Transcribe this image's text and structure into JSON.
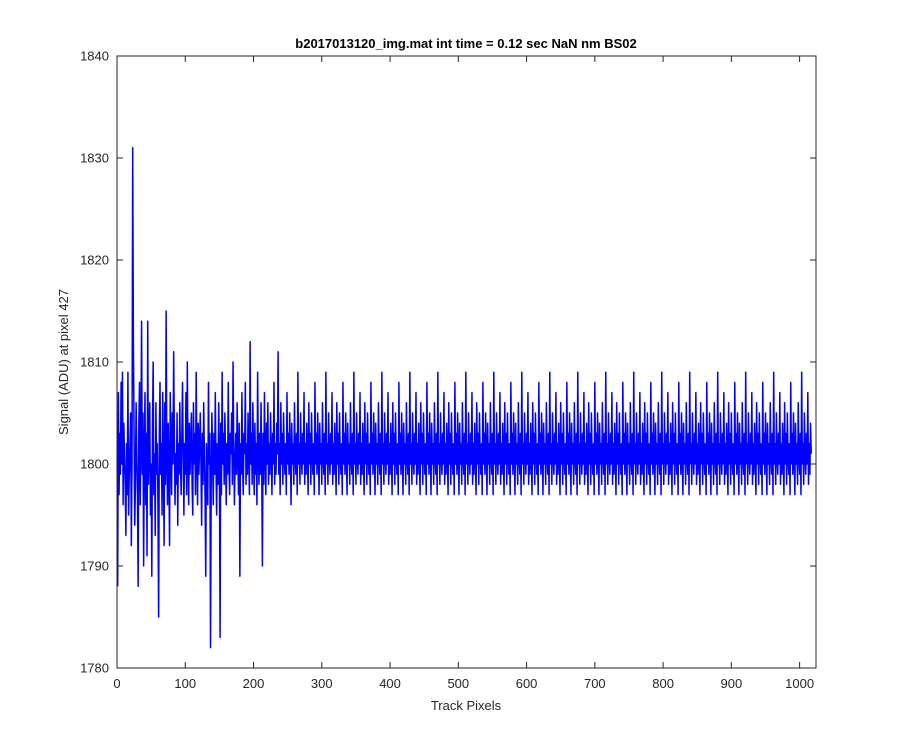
{
  "chart_data": {
    "type": "line",
    "title": "b2017013120_img.mat int time = 0.12 sec  NaN nm BS02",
    "xlabel": "Track Pixels",
    "ylabel": "Signal (ADU) at pixel 427",
    "xlim": [
      0,
      1024
    ],
    "ylim": [
      1780,
      1840
    ],
    "xticks": [
      "0",
      "100",
      "200",
      "300",
      "400",
      "500",
      "600",
      "700",
      "800",
      "900",
      "1000"
    ],
    "yticks": [
      "1780",
      "1790",
      "1800",
      "1810",
      "1820",
      "1830",
      "1840"
    ],
    "grid": false,
    "box": true,
    "series": [
      {
        "color": "#0000ff",
        "x_start": 1,
        "x_step": 1,
        "values": [
          1788,
          1807,
          1797,
          1803,
          1799,
          1808,
          1800,
          1809,
          1796,
          1804,
          1801,
          1798,
          1793,
          1802,
          1797,
          1809,
          1795,
          1799,
          1802,
          1805,
          1792,
          1800,
          1831,
          1812,
          1803,
          1794,
          1798,
          1806,
          1801,
          1797,
          1788,
          1804,
          1808,
          1796,
          1802,
          1814,
          1799,
          1805,
          1790,
          1801,
          1807,
          1796,
          1803,
          1791,
          1814,
          1798,
          1802,
          1806,
          1795,
          1800,
          1789,
          1804,
          1810,
          1797,
          1801,
          1793,
          1806,
          1799,
          1802,
          1796,
          1785,
          1803,
          1808,
          1799,
          1802,
          1795,
          1807,
          1800,
          1792,
          1806,
          1798,
          1815,
          1801,
          1796,
          1804,
          1799,
          1792,
          1807,
          1802,
          1797,
          1805,
          1800,
          1811,
          1803,
          1796,
          1801,
          1798,
          1805,
          1794,
          1802,
          1799,
          1806,
          1800,
          1797,
          1803,
          1808,
          1801,
          1795,
          1802,
          1799,
          1807,
          1797,
          1810,
          1801,
          1796,
          1804,
          1799,
          1802,
          1805,
          1798,
          1795,
          1806,
          1800,
          1803,
          1797,
          1809,
          1801,
          1796,
          1804,
          1799,
          1802,
          1805,
          1800,
          1794,
          1803,
          1798,
          1806,
          1801,
          1797,
          1789,
          1802,
          1799,
          1796,
          1808,
          1800,
          1803,
          1782,
          1798,
          1805,
          1801,
          1796,
          1803,
          1799,
          1807,
          1800,
          1795,
          1802,
          1798,
          1806,
          1801,
          1783,
          1804,
          1797,
          1809,
          1800,
          1803,
          1798,
          1805,
          1801,
          1796,
          1802,
          1799,
          1808,
          1800,
          1797,
          1803,
          1801,
          1805,
          1798,
          1810,
          1802,
          1796,
          1800,
          1803,
          1799,
          1806,
          1801,
          1797,
          1804,
          1789,
          1802,
          1799,
          1807,
          1800,
          1797,
          1803,
          1801,
          1808,
          1798,
          1802,
          1799,
          1805,
          1801,
          1797,
          1812,
          1800,
          1803,
          1798,
          1806,
          1801,
          1797,
          1804,
          1799,
          1802,
          1796,
          1809,
          1801,
          1798,
          1803,
          1799,
          1806,
          1800,
          1790,
          1803,
          1798,
          1807,
          1801,
          1797,
          1804,
          1800,
          1806,
          1798,
          1802,
          1799,
          1805,
          1801,
          1797,
          1803,
          1800,
          1808,
          1798,
          1802,
          1799,
          1804,
          1801,
          1811,
          1799,
          1802,
          1797,
          1806,
          1800,
          1803,
          1798,
          1805,
          1801,
          1799,
          1802,
          1797,
          1807,
          1800,
          1803,
          1799,
          1805,
          1801,
          1796,
          1804,
          1800,
          1802,
          1798,
          1806,
          1801,
          1799,
          1803,
          1797,
          1809,
          1800,
          1802,
          1798,
          1805,
          1801,
          1799,
          1803,
          1800,
          1807,
          1798,
          1802,
          1799,
          1804,
          1801,
          1797,
          1806,
          1800,
          1803,
          1798,
          1805,
          1801,
          1799,
          1802,
          1797,
          1808,
          1800,
          1803,
          1799,
          1805,
          1801,
          1797,
          1804,
          1800,
          1802,
          1798,
          1806,
          1801,
          1799,
          1803,
          1797,
          1809,
          1800,
          1802,
          1798,
          1805,
          1801,
          1799,
          1803,
          1800,
          1807,
          1798,
          1802,
          1799,
          1804,
          1801,
          1797,
          1806,
          1800,
          1803,
          1798,
          1805,
          1801,
          1799,
          1802,
          1797,
          1808,
          1800,
          1803,
          1799,
          1805,
          1801,
          1797,
          1804,
          1800,
          1802,
          1798,
          1806,
          1801,
          1799,
          1803,
          1797,
          1809,
          1800,
          1802,
          1798,
          1805,
          1801,
          1799,
          1803,
          1800,
          1807,
          1798,
          1802,
          1799,
          1804,
          1801,
          1797,
          1806,
          1800,
          1803,
          1798,
          1805,
          1801,
          1799,
          1802,
          1797,
          1808,
          1800,
          1803,
          1799,
          1805,
          1801,
          1797,
          1804,
          1800,
          1802,
          1798,
          1806,
          1801,
          1799,
          1803,
          1797,
          1809,
          1800,
          1802,
          1798,
          1805,
          1801,
          1799,
          1803,
          1800,
          1807,
          1798,
          1802,
          1799,
          1804,
          1801,
          1797,
          1806,
          1800,
          1803,
          1798,
          1805,
          1801,
          1799,
          1802,
          1797,
          1808,
          1800,
          1803,
          1799,
          1805,
          1801,
          1797,
          1804,
          1800,
          1802,
          1798,
          1806,
          1801,
          1799,
          1803,
          1797,
          1809,
          1800,
          1802,
          1798,
          1805,
          1801,
          1799,
          1803,
          1800,
          1807,
          1798,
          1802,
          1799,
          1804,
          1801,
          1797,
          1806,
          1800,
          1803,
          1798,
          1805,
          1801,
          1799,
          1802,
          1797,
          1808,
          1800,
          1803,
          1799,
          1805,
          1801,
          1797,
          1804,
          1800,
          1802,
          1798,
          1806,
          1801,
          1799,
          1803,
          1797,
          1809,
          1800,
          1802,
          1798,
          1805,
          1801,
          1799,
          1803,
          1800,
          1807,
          1798,
          1802,
          1799,
          1804,
          1801,
          1797,
          1806,
          1800,
          1803,
          1798,
          1805,
          1801,
          1799,
          1802,
          1797,
          1808,
          1800,
          1803,
          1799,
          1805,
          1801,
          1797,
          1804,
          1800,
          1802,
          1798,
          1806,
          1801,
          1799,
          1803,
          1797,
          1809,
          1800,
          1802,
          1798,
          1805,
          1801,
          1799,
          1803,
          1800,
          1807,
          1798,
          1802,
          1799,
          1804,
          1801,
          1797,
          1806,
          1800,
          1803,
          1798,
          1805,
          1801,
          1799,
          1802,
          1797,
          1808,
          1800,
          1803,
          1799,
          1805,
          1801,
          1797,
          1804,
          1800,
          1802,
          1798,
          1806,
          1801,
          1799,
          1803,
          1797,
          1809,
          1800,
          1802,
          1798,
          1805,
          1801,
          1799,
          1803,
          1800,
          1807,
          1798,
          1802,
          1799,
          1804,
          1801,
          1797,
          1806,
          1800,
          1803,
          1798,
          1805,
          1801,
          1799,
          1802,
          1797,
          1808,
          1800,
          1803,
          1799,
          1805,
          1801,
          1797,
          1804,
          1800,
          1802,
          1798,
          1806,
          1801,
          1799,
          1803,
          1797,
          1809,
          1800,
          1802,
          1798,
          1805,
          1801,
          1799,
          1803,
          1800,
          1807,
          1798,
          1802,
          1799,
          1804,
          1801,
          1797,
          1806,
          1800,
          1803,
          1798,
          1805,
          1801,
          1799,
          1802,
          1797,
          1808,
          1800,
          1803,
          1799,
          1805,
          1801,
          1797,
          1804,
          1800,
          1802,
          1798,
          1806,
          1801,
          1799,
          1803,
          1797,
          1809,
          1800,
          1802,
          1798,
          1805,
          1801,
          1799,
          1803,
          1800,
          1807,
          1798,
          1802,
          1799,
          1804,
          1801,
          1797,
          1806,
          1800,
          1803,
          1798,
          1805,
          1801,
          1799,
          1802,
          1797,
          1808,
          1800,
          1803,
          1799,
          1805,
          1801,
          1797,
          1804,
          1800,
          1802,
          1798,
          1806,
          1801,
          1799,
          1803,
          1797,
          1809,
          1800,
          1802,
          1798,
          1805,
          1801,
          1799,
          1803,
          1800,
          1807,
          1798,
          1802,
          1799,
          1804,
          1801,
          1797,
          1806,
          1800,
          1803,
          1798,
          1805,
          1801,
          1799,
          1802,
          1797,
          1808,
          1800,
          1803,
          1799,
          1805,
          1801,
          1797,
          1804,
          1800,
          1802,
          1798,
          1806,
          1801,
          1799,
          1803,
          1797,
          1809,
          1800,
          1802,
          1798,
          1805,
          1801,
          1799,
          1803,
          1800,
          1807,
          1798,
          1802,
          1799,
          1804,
          1801,
          1797,
          1806,
          1800,
          1803,
          1798,
          1805,
          1801,
          1799,
          1802,
          1797,
          1808,
          1800,
          1803,
          1799,
          1805,
          1801,
          1797,
          1804,
          1800,
          1802,
          1798,
          1806,
          1801,
          1799,
          1803,
          1797,
          1809,
          1800,
          1802,
          1798,
          1805,
          1801,
          1799,
          1803,
          1800,
          1807,
          1798,
          1802,
          1799,
          1804,
          1801,
          1797,
          1806,
          1800,
          1803,
          1798,
          1805,
          1801,
          1799,
          1802,
          1797,
          1808,
          1800,
          1803,
          1799,
          1805,
          1801,
          1797,
          1804,
          1800,
          1802,
          1798,
          1806,
          1801,
          1799,
          1803,
          1797,
          1809,
          1800,
          1802,
          1798,
          1805,
          1801,
          1799,
          1803,
          1800,
          1807,
          1798,
          1802,
          1799,
          1804,
          1801,
          1797,
          1806,
          1800,
          1803,
          1798,
          1805,
          1801,
          1799,
          1802,
          1797,
          1808,
          1800,
          1803,
          1799,
          1805,
          1801,
          1797,
          1804,
          1800,
          1802,
          1798,
          1806,
          1801,
          1799,
          1803,
          1797,
          1809,
          1800,
          1802,
          1798,
          1805,
          1801,
          1799,
          1803,
          1800,
          1807,
          1798,
          1802,
          1799,
          1804,
          1801,
          1797,
          1806,
          1800,
          1803,
          1798,
          1805,
          1801,
          1799,
          1802,
          1797,
          1808,
          1800,
          1803,
          1799,
          1805,
          1801,
          1797,
          1804,
          1800,
          1802,
          1798,
          1806,
          1801,
          1799,
          1803,
          1797,
          1809,
          1800,
          1802,
          1798,
          1805,
          1801,
          1799,
          1803,
          1800,
          1807,
          1798,
          1802,
          1799,
          1804,
          1801,
          1797,
          1806,
          1800,
          1803,
          1798,
          1805,
          1801,
          1799,
          1802,
          1797,
          1808,
          1800,
          1803,
          1799,
          1805,
          1801,
          1797,
          1804,
          1800,
          1802,
          1798,
          1806,
          1801,
          1799,
          1803,
          1797,
          1809,
          1800,
          1802,
          1798,
          1805,
          1801,
          1799,
          1803,
          1800,
          1807,
          1798,
          1802,
          1799,
          1804,
          1801,
          1797,
          1806,
          1800,
          1803,
          1798,
          1805,
          1801,
          1799,
          1802,
          1797,
          1808,
          1800,
          1803,
          1799,
          1805,
          1801,
          1797,
          1804,
          1800,
          1802,
          1798,
          1806,
          1801,
          1799,
          1803,
          1797,
          1809,
          1800,
          1802,
          1798,
          1805,
          1801,
          1799,
          1803,
          1800,
          1807,
          1798,
          1802,
          1799,
          1804,
          1801,
          1797,
          1806,
          1800,
          1803,
          1798,
          1805,
          1801,
          1799,
          1802,
          1797,
          1808,
          1800,
          1803,
          1799,
          1805,
          1801,
          1797,
          1804,
          1800,
          1802,
          1798,
          1806,
          1801,
          1799,
          1803,
          1797,
          1809,
          1800,
          1802,
          1798,
          1805,
          1801,
          1799,
          1803,
          1800,
          1807,
          1798,
          1802,
          1799,
          1804,
          1801
        ]
      }
    ]
  }
}
